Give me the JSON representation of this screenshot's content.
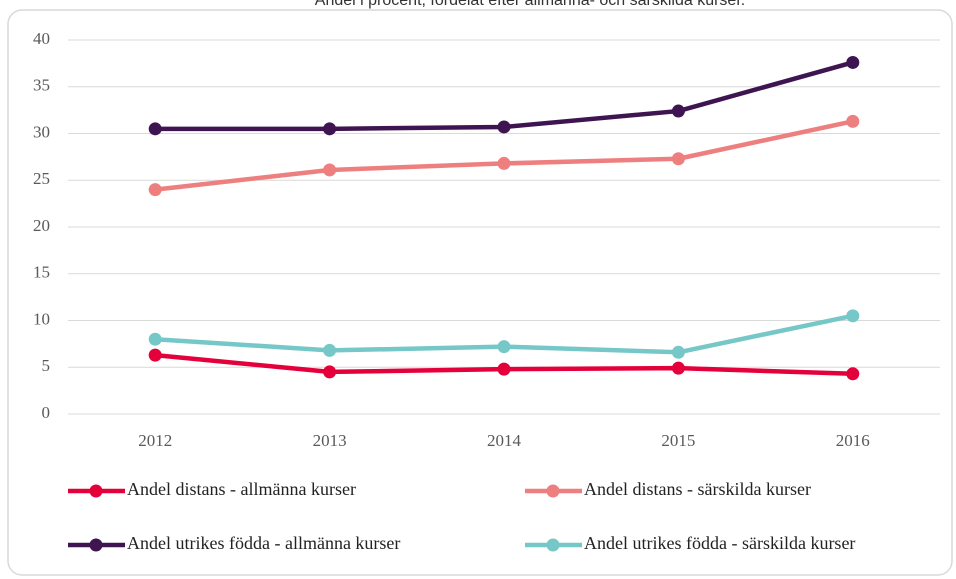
{
  "chart_data": {
    "type": "line",
    "title": "Andel i procent, fördelat efter allmänna- och särskilda kurser.",
    "categories": [
      "2012",
      "2013",
      "2014",
      "2015",
      "2016"
    ],
    "series": [
      {
        "name": "Andel distans - allmänna kurser",
        "color": "#e4003b",
        "values": [
          6.3,
          4.5,
          4.8,
          4.9,
          4.3
        ]
      },
      {
        "name": "Andel distans - särskilda kurser",
        "color": "#ee7f7f",
        "values": [
          24.0,
          26.1,
          26.8,
          27.3,
          31.3
        ]
      },
      {
        "name": "Andel utrikes födda - allmänna kurser",
        "color": "#3f1551",
        "values": [
          30.5,
          30.5,
          30.7,
          32.4,
          37.6
        ]
      },
      {
        "name": "Andel utrikes födda - särskilda kurser",
        "color": "#76c7c7",
        "values": [
          8.0,
          6.8,
          7.2,
          6.6,
          10.5
        ]
      }
    ],
    "ylim": [
      0,
      40
    ],
    "yticks": [
      0,
      5,
      10,
      15,
      20,
      25,
      30,
      35,
      40
    ],
    "grid": true,
    "legend": "bottom"
  }
}
